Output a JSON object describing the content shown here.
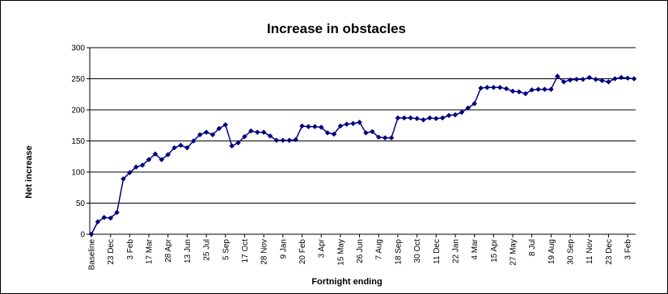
{
  "chart_data": {
    "type": "line",
    "title": "Increase in obstacles",
    "xlabel": "Fortnight ending",
    "ylabel": "Net increase",
    "ylim": [
      0,
      300
    ],
    "yticks": [
      0,
      50,
      100,
      150,
      200,
      250,
      300
    ],
    "grid": true,
    "legend": "none",
    "series_color": "#000080",
    "x_tick_labels": [
      "Baseline",
      "23 Dec",
      "3 Feb",
      "17 Mar",
      "28 Apr",
      "13 Jun",
      "25 Jul",
      "5 Sep",
      "17 Oct",
      "28 Nov",
      "9 Jan",
      "20 Feb",
      "3 Apr",
      "15 May",
      "26 Jun",
      "7 Aug",
      "18 Sep",
      "30 Oct",
      "11 Dec",
      "22 Jan",
      "4 Mar",
      "15 Apr",
      "27 May",
      "8 Jul",
      "19 Aug",
      "30 Sep",
      "11 Nov",
      "23 Dec",
      "3 Feb"
    ],
    "values": [
      0,
      20,
      27,
      26,
      35,
      89,
      99,
      108,
      111,
      120,
      129,
      120,
      128,
      139,
      143,
      139,
      150,
      160,
      164,
      160,
      170,
      176,
      142,
      147,
      157,
      166,
      164,
      164,
      158,
      151,
      151,
      151,
      152,
      174,
      173,
      173,
      172,
      163,
      161,
      174,
      177,
      178,
      180,
      163,
      165,
      156,
      155,
      155,
      187,
      187,
      187,
      186,
      184,
      187,
      186,
      187,
      191,
      192,
      196,
      203,
      210,
      235,
      236,
      236,
      236,
      234,
      230,
      229,
      226,
      232,
      233,
      233,
      233,
      254,
      245,
      248,
      249,
      249,
      252,
      249,
      247,
      245,
      250,
      252,
      251,
      250
    ]
  }
}
